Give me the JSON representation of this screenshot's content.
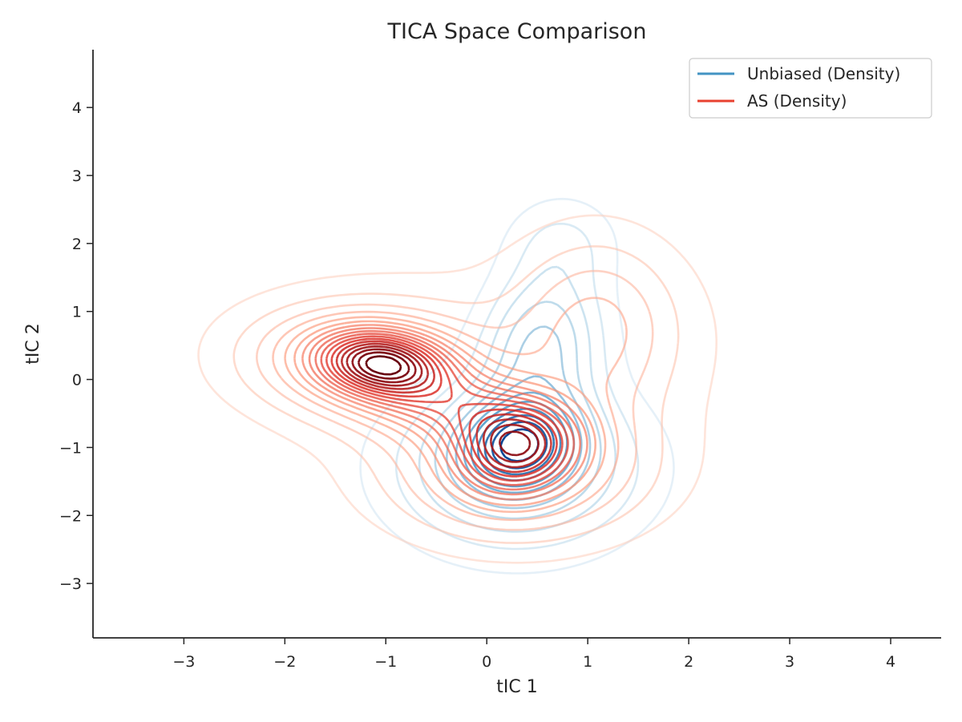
{
  "chart_data": {
    "type": "contour",
    "title": "TICA Space Comparison",
    "xlabel": "tIC 1",
    "ylabel": "tIC 2",
    "xlim": [
      -3.9,
      4.5
    ],
    "ylim": [
      -3.8,
      4.85
    ],
    "xticks": [
      -3,
      -2,
      -1,
      0,
      1,
      2,
      3,
      4
    ],
    "yticks": [
      -3,
      -2,
      -1,
      0,
      1,
      2,
      3,
      4
    ],
    "xtick_labels": [
      "−3",
      "−2",
      "−1",
      "0",
      "1",
      "2",
      "3",
      "4"
    ],
    "ytick_labels": [
      "−3",
      "−2",
      "−1",
      "0",
      "1",
      "2",
      "3",
      "4"
    ],
    "grid": false,
    "legend_position": "top-right",
    "series": [
      {
        "name": "Unbiased (Density)",
        "legend_color": "#4393c3",
        "colormap": "Blues",
        "levels": 12,
        "components": [
          {
            "weight": 1.0,
            "mean": [
              0.32,
              -0.95
            ],
            "sigma": [
              0.38,
              0.45
            ],
            "rho": 0.1
          },
          {
            "weight": 0.65,
            "mean": [
              0.55,
              0.55
            ],
            "sigma": [
              0.42,
              0.75
            ],
            "rho": 0.1
          },
          {
            "weight": 0.7,
            "mean": [
              0.3,
              -1.3
            ],
            "sigma": [
              0.85,
              0.85
            ],
            "rho": 0.0
          },
          {
            "weight": 0.25,
            "mean": [
              0.75,
              2.05
            ],
            "sigma": [
              0.4,
              0.5
            ],
            "rho": 0.0
          }
        ]
      },
      {
        "name": "AS (Density)",
        "legend_color": "#e8412f",
        "colormap": "Reds",
        "levels": 18,
        "components": [
          {
            "weight": 1.0,
            "mean": [
              -1.05,
              0.25
            ],
            "sigma": [
              0.42,
              0.32
            ],
            "rho": -0.15
          },
          {
            "weight": 0.85,
            "mean": [
              0.3,
              -1.0
            ],
            "sigma": [
              0.4,
              0.45
            ],
            "rho": 0.1
          },
          {
            "weight": 0.45,
            "mean": [
              -0.3,
              -0.4
            ],
            "sigma": [
              0.65,
              0.45
            ],
            "rho": -0.4
          },
          {
            "weight": 0.5,
            "mean": [
              -1.2,
              0.25
            ],
            "sigma": [
              0.85,
              0.6
            ],
            "rho": -0.1
          },
          {
            "weight": 0.3,
            "mean": [
              1.1,
              0.8
            ],
            "sigma": [
              0.55,
              0.9
            ],
            "rho": 0.0
          },
          {
            "weight": 0.45,
            "mean": [
              0.3,
              -1.4
            ],
            "sigma": [
              0.9,
              0.7
            ],
            "rho": 0.0
          },
          {
            "weight": 0.12,
            "mean": [
              0.4,
              0.3
            ],
            "sigma": [
              1.6,
              1.3
            ],
            "rho": 0.05
          }
        ]
      }
    ]
  }
}
